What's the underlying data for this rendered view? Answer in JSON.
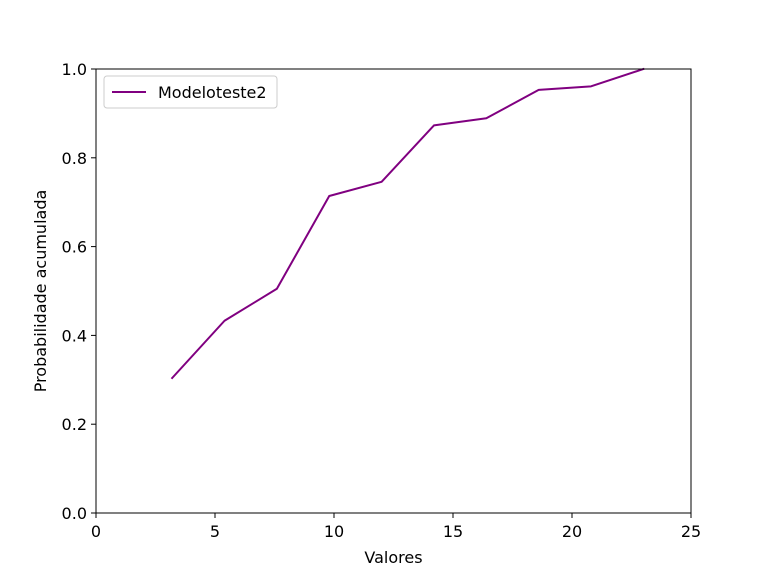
{
  "chart_data": {
    "type": "line",
    "title": "",
    "xlabel": "Valores",
    "ylabel": "Probabilidade acumulada",
    "xlim": [
      0,
      25
    ],
    "ylim": [
      0.0,
      1.0
    ],
    "xticks": [
      "0",
      "5",
      "10",
      "15",
      "20",
      "25"
    ],
    "yticks": [
      "0.0",
      "0.2",
      "0.4",
      "0.6",
      "0.8",
      "1.0"
    ],
    "grid": false,
    "legend_position": "upper-left",
    "series": [
      {
        "name": "Modeloteste2",
        "color": "#800080",
        "x": [
          3.2,
          5.4,
          7.6,
          9.8,
          12.0,
          14.2,
          16.4,
          18.6,
          20.8,
          23.0
        ],
        "y": [
          0.304,
          0.433,
          0.505,
          0.714,
          0.746,
          0.873,
          0.889,
          0.953,
          0.961,
          1.0
        ]
      }
    ]
  }
}
